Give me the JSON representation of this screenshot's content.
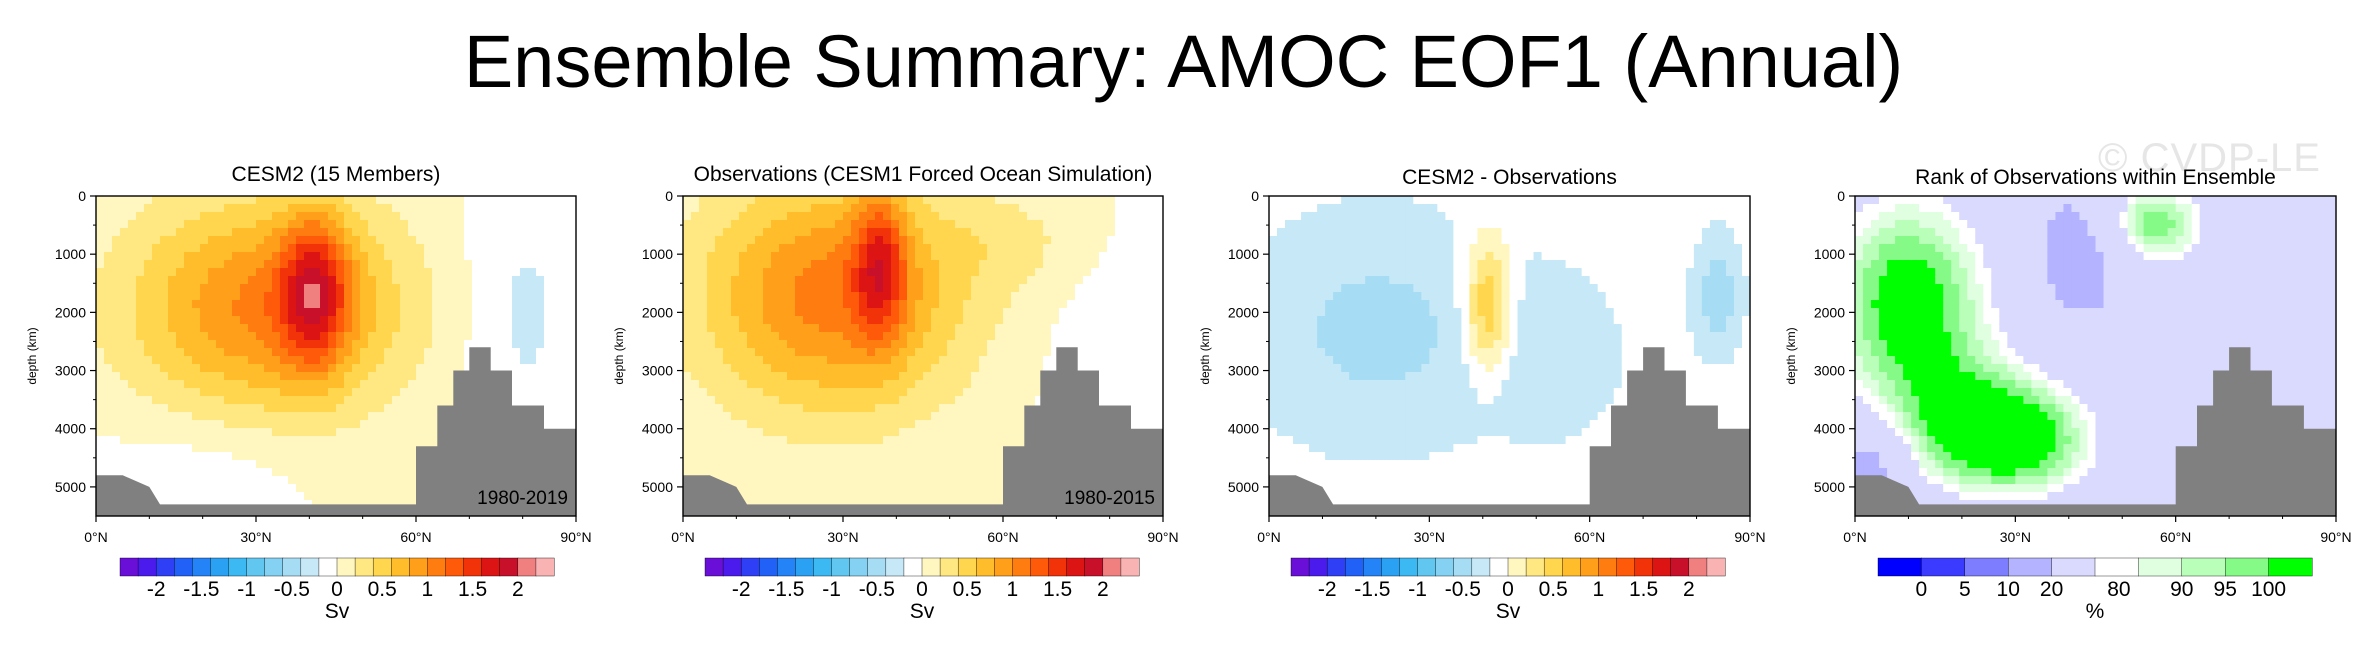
{
  "title": "Ensemble Summary: AMOC EOF1 (Annual)",
  "watermark": "© CVDP-LE",
  "colors": {
    "topo": "#808080",
    "diff_levels": [
      "#6a0fd8",
      "#4b1bee",
      "#2f3ff5",
      "#2261f8",
      "#2483f6",
      "#2aa1f3",
      "#3cb9f2",
      "#61c7f1",
      "#85d1f3",
      "#a7dcf5",
      "#c6e8f7",
      "#ffffff",
      "#fff6c0",
      "#ffe882",
      "#ffd64e",
      "#ffbd2c",
      "#ff9f1a",
      "#ff7d10",
      "#ff5a0a",
      "#f23208",
      "#dc1414",
      "#c8102a",
      "#f08080",
      "#f9b3b3"
    ],
    "rank_levels": [
      "#0000ff",
      "#3b3bff",
      "#7d7dff",
      "#b3b3ff",
      "#dadaff",
      "#ffffff",
      "#e0ffe0",
      "#b9ffb9",
      "#86fa86",
      "#00ff00"
    ]
  },
  "chart_data": [
    {
      "type": "contour",
      "title": "CESM2 (15 Members)",
      "period": "1980-2019",
      "ylabel": "depth (km)",
      "yticks": [
        "0",
        "1000",
        "2000",
        "3000",
        "4000",
        "5000"
      ],
      "xticks": [
        "0°N",
        "30°N",
        "60°N",
        "90°N"
      ],
      "xlim": [
        0,
        90
      ],
      "ylim": [
        5500,
        0
      ],
      "colorbar_ticks": [
        "-2",
        "-1.5",
        "-1",
        "-0.5",
        "0",
        "0.5",
        "1",
        "1.5",
        "2"
      ],
      "colorbar_label": "Sv",
      "max_cell": {
        "lat": 41,
        "depth": 1600,
        "value": 2.0
      }
    },
    {
      "type": "contour",
      "title": "Observations (CESM1 Forced Ocean Simulation)",
      "period": "1980-2015",
      "ylabel": "depth (km)",
      "yticks": [
        "0",
        "1000",
        "2000",
        "3000",
        "4000",
        "5000"
      ],
      "xticks": [
        "0°N",
        "30°N",
        "60°N",
        "90°N"
      ],
      "xlim": [
        0,
        90
      ],
      "ylim": [
        5500,
        0
      ],
      "colorbar_ticks": [
        "-2",
        "-1.5",
        "-1",
        "-0.5",
        "0",
        "0.5",
        "1",
        "1.5",
        "2"
      ],
      "colorbar_label": "Sv",
      "max_cell": {
        "lat": 37,
        "depth": 1200,
        "value": 1.6
      }
    },
    {
      "type": "contour",
      "title": "CESM2 - Observations",
      "ylabel": "depth (km)",
      "yticks": [
        "0",
        "1000",
        "2000",
        "3000",
        "4000",
        "5000"
      ],
      "xticks": [
        "0°N",
        "30°N",
        "60°N",
        "90°N"
      ],
      "xlim": [
        0,
        90
      ],
      "ylim": [
        5500,
        0
      ],
      "colorbar_ticks": [
        "-2",
        "-1.5",
        "-1",
        "-0.5",
        "0",
        "0.5",
        "1",
        "1.5",
        "2"
      ],
      "colorbar_label": "Sv",
      "max_cell": {
        "lat": 40,
        "depth": 1800,
        "value": 0.8
      }
    },
    {
      "type": "heatmap",
      "title": "Rank of Observations within Ensemble",
      "ylabel": "depth (km)",
      "yticks": [
        "0",
        "1000",
        "2000",
        "3000",
        "4000",
        "5000"
      ],
      "xticks": [
        "0°N",
        "30°N",
        "60°N",
        "90°N"
      ],
      "xlim": [
        0,
        90
      ],
      "ylim": [
        5500,
        0
      ],
      "colorbar_ticks": [
        "0",
        "5",
        "10",
        "20",
        "80",
        "90",
        "95",
        "100"
      ],
      "colorbar_label": "%"
    }
  ]
}
